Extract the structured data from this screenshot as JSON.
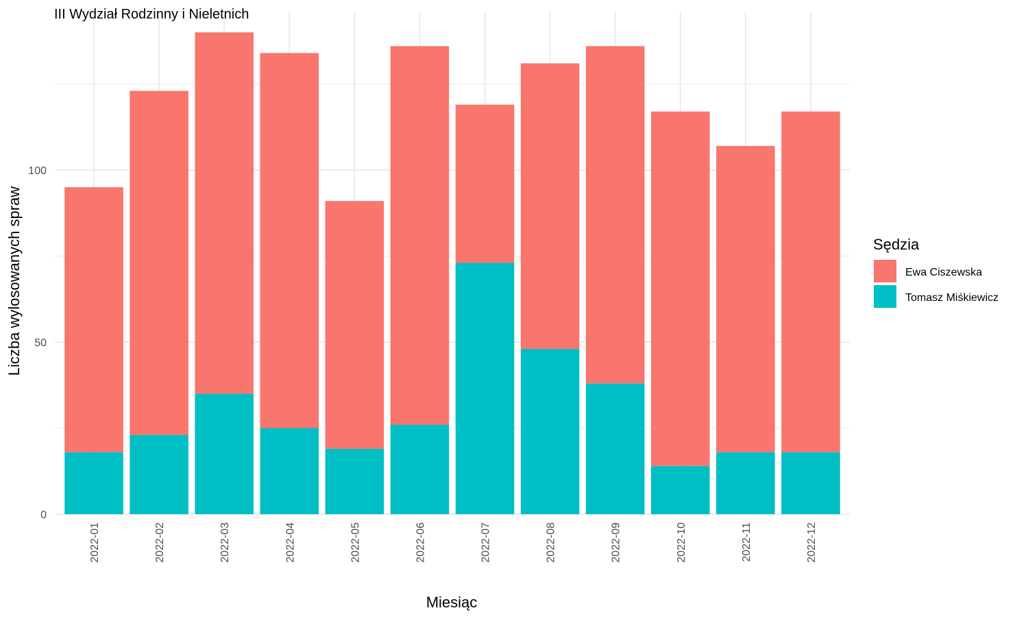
{
  "chart_data": {
    "type": "bar",
    "stacked": true,
    "title": "III Wydział Rodzinny i Nieletnich",
    "xlabel": "Miesiąc",
    "ylabel": "Liczba wylosowanych spraw",
    "categories": [
      "2022-01",
      "2022-02",
      "2022-03",
      "2022-04",
      "2022-05",
      "2022-06",
      "2022-07",
      "2022-08",
      "2022-09",
      "2022-10",
      "2022-11",
      "2022-12"
    ],
    "series": [
      {
        "name": "Ewa Ciszewska",
        "color": "#F8766D",
        "values": [
          77,
          100,
          105,
          109,
          72,
          110,
          46,
          83,
          98,
          103,
          89,
          99
        ]
      },
      {
        "name": "Tomasz Miśkiewicz",
        "color": "#00BFC4",
        "values": [
          18,
          23,
          35,
          25,
          19,
          26,
          73,
          48,
          38,
          14,
          18,
          18
        ]
      }
    ],
    "ylim": [
      0,
      146
    ],
    "yticks": [
      0,
      50,
      100
    ],
    "grid": true,
    "legend": {
      "title": "Sędzia",
      "position": "right"
    }
  }
}
